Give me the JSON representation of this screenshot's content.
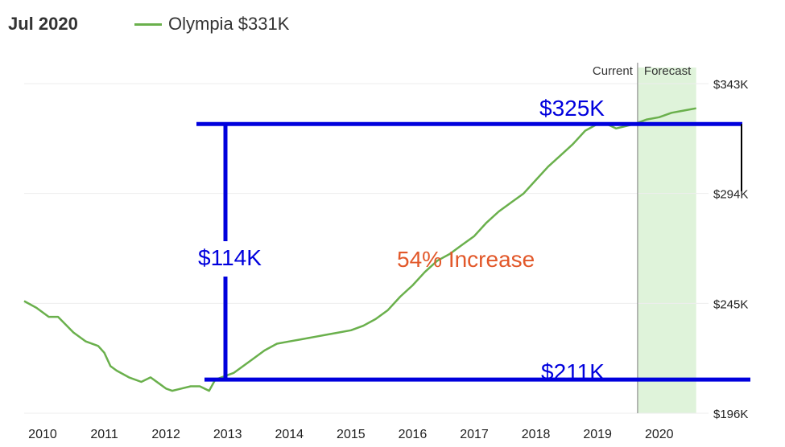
{
  "header": {
    "date": "Jul 2020"
  },
  "legend": {
    "label": "Olympia $331K",
    "color": "#6ab04c"
  },
  "chart_data": {
    "type": "line",
    "title": "",
    "xlabel": "",
    "ylabel": "",
    "ylim": [
      196,
      343
    ],
    "y_unit": "$K",
    "y_ticks": [
      343,
      294,
      245,
      196
    ],
    "y_tick_labels": [
      "$343K",
      "$294K",
      "$245K",
      "$196K"
    ],
    "x_ticks": [
      2010,
      2011,
      2012,
      2013,
      2014,
      2015,
      2016,
      2017,
      2018,
      2019,
      2020
    ],
    "x_tick_labels": [
      "2010",
      "2011",
      "2012",
      "2013",
      "2014",
      "2015",
      "2016",
      "2017",
      "2018",
      "2019",
      "2020"
    ],
    "xlim": [
      2009.7,
      2020.8
    ],
    "grid": true,
    "legend_position": "top-left",
    "current_label": "Current",
    "forecast_label": "Forecast",
    "forecast_start": 2019.65,
    "forecast_end": 2020.6,
    "series": [
      {
        "name": "Olympia $331K",
        "color": "#6ab04c",
        "x": [
          2009.7,
          2009.9,
          2010.1,
          2010.25,
          2010.5,
          2010.7,
          2010.9,
          2011.0,
          2011.1,
          2011.2,
          2011.4,
          2011.6,
          2011.75,
          2011.9,
          2012.0,
          2012.1,
          2012.25,
          2012.4,
          2012.55,
          2012.7,
          2012.8,
          2012.9,
          2013.0,
          2013.1,
          2013.2,
          2013.4,
          2013.6,
          2013.8,
          2014.0,
          2014.2,
          2014.4,
          2014.6,
          2014.8,
          2015.0,
          2015.2,
          2015.4,
          2015.6,
          2015.8,
          2016.0,
          2016.2,
          2016.4,
          2016.6,
          2016.8,
          2017.0,
          2017.2,
          2017.4,
          2017.6,
          2017.8,
          2018.0,
          2018.2,
          2018.4,
          2018.6,
          2018.8,
          2019.0,
          2019.15,
          2019.3,
          2019.45,
          2019.6,
          2019.8,
          2020.0,
          2020.2,
          2020.4,
          2020.6
        ],
        "values": [
          246,
          243,
          239,
          239,
          232,
          228,
          226,
          223,
          217,
          215,
          212,
          210,
          212,
          209,
          207,
          206,
          207,
          208,
          208,
          206,
          211,
          212,
          213,
          214,
          216,
          220,
          224,
          227,
          228,
          229,
          230,
          231,
          232,
          233,
          235,
          238,
          242,
          248,
          253,
          259,
          264,
          267,
          271,
          275,
          281,
          286,
          290,
          294,
          300,
          306,
          311,
          316,
          322,
          325,
          325,
          323,
          324,
          325,
          327,
          328,
          330,
          331,
          332
        ]
      }
    ],
    "annotations": [
      {
        "text": "$325K",
        "value": 325,
        "color": "#0000dd"
      },
      {
        "text": "$211K",
        "value": 211,
        "color": "#0000dd"
      },
      {
        "text": "$114K",
        "color": "#0000dd"
      },
      {
        "text": "54% Increase",
        "color": "#e2582a"
      }
    ]
  }
}
